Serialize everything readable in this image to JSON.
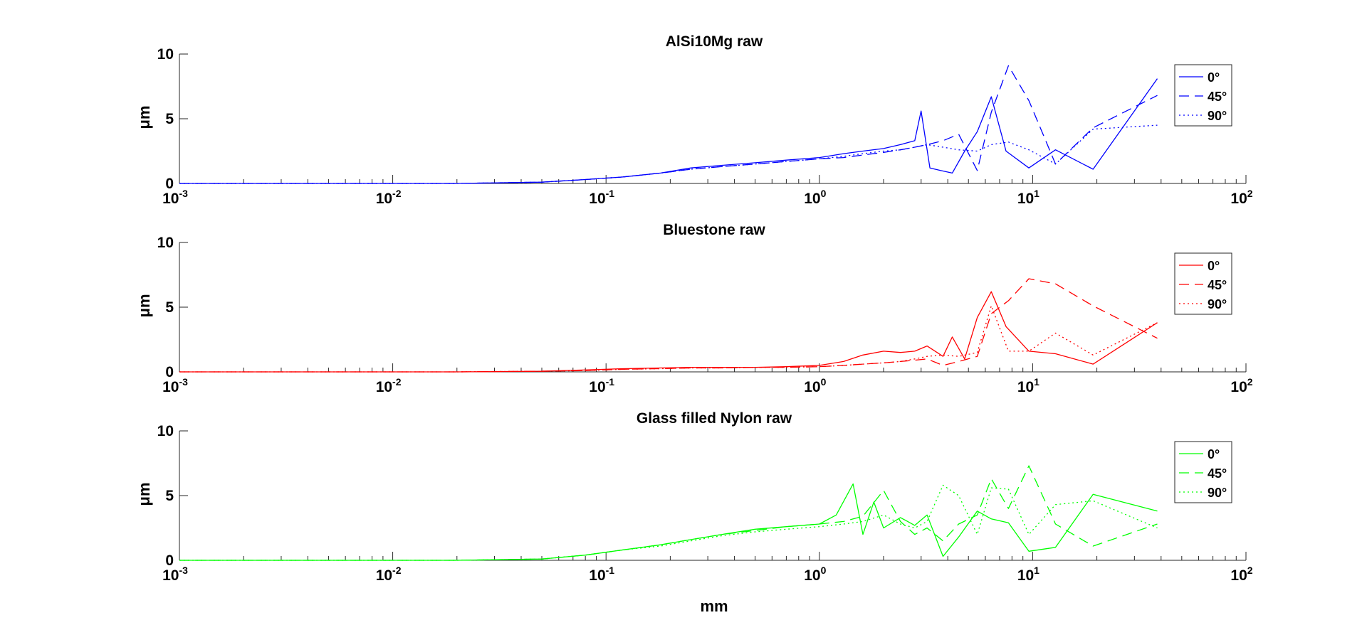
{
  "chart_data": [
    {
      "type": "line",
      "title": "AlSi10Mg raw",
      "color": "#0000ff",
      "xscale": "log",
      "xlim": [
        0.001,
        100
      ],
      "ylim": [
        0,
        10
      ],
      "yticks": [
        0,
        5,
        10
      ],
      "ylabel": "μm",
      "xlabel": "",
      "legend_position": "top-right",
      "grid": false,
      "series": [
        {
          "name": "0°",
          "style": "solid",
          "x": [
            0.001,
            0.02,
            0.05,
            0.08,
            0.12,
            0.18,
            0.25,
            0.35,
            0.5,
            0.7,
            1.0,
            1.3,
            1.6,
            2.0,
            2.4,
            2.8,
            3.0,
            3.3,
            3.7,
            4.2,
            4.8,
            5.5,
            6.4,
            7.5,
            9.6,
            12.8,
            19.2,
            38.4
          ],
          "y": [
            0,
            0,
            0.1,
            0.3,
            0.5,
            0.8,
            1.2,
            1.4,
            1.6,
            1.8,
            2.0,
            2.3,
            2.5,
            2.7,
            3.0,
            3.3,
            5.6,
            1.2,
            1.0,
            0.8,
            2.5,
            4.0,
            6.7,
            2.5,
            1.2,
            2.6,
            1.1,
            8.1
          ]
        },
        {
          "name": "45°",
          "style": "dashed",
          "x": [
            0.001,
            0.02,
            0.05,
            0.08,
            0.12,
            0.18,
            0.25,
            0.35,
            0.5,
            0.7,
            1.0,
            1.3,
            1.6,
            2.0,
            2.4,
            2.8,
            3.2,
            3.8,
            4.5,
            5.5,
            6.4,
            7.7,
            9.6,
            12.8,
            19.2,
            38.4
          ],
          "y": [
            0,
            0,
            0.1,
            0.3,
            0.5,
            0.8,
            1.1,
            1.3,
            1.5,
            1.7,
            1.9,
            2.0,
            2.2,
            2.4,
            2.6,
            2.8,
            3.0,
            3.3,
            3.8,
            1.0,
            5.5,
            9.1,
            6.4,
            1.5,
            4.3,
            6.8
          ]
        },
        {
          "name": "90°",
          "style": "dotted",
          "x": [
            0.001,
            0.02,
            0.05,
            0.08,
            0.12,
            0.18,
            0.25,
            0.35,
            0.5,
            0.7,
            1.0,
            1.3,
            1.6,
            2.0,
            2.4,
            2.8,
            3.2,
            3.8,
            4.5,
            5.5,
            6.4,
            7.7,
            9.6,
            12.8,
            19.2,
            38.4
          ],
          "y": [
            0,
            0,
            0.1,
            0.3,
            0.5,
            0.8,
            1.1,
            1.3,
            1.5,
            1.7,
            1.9,
            2.1,
            2.3,
            2.5,
            2.6,
            2.8,
            3.0,
            2.8,
            2.6,
            2.5,
            3.0,
            3.2,
            2.6,
            1.5,
            4.2,
            4.5
          ]
        }
      ]
    },
    {
      "type": "line",
      "title": "Bluestone raw",
      "color": "#ff0000",
      "xscale": "log",
      "xlim": [
        0.001,
        100
      ],
      "ylim": [
        0,
        10
      ],
      "yticks": [
        0,
        5,
        10
      ],
      "ylabel": "μm",
      "xlabel": "",
      "legend_position": "top-right",
      "grid": false,
      "series": [
        {
          "name": "0°",
          "style": "solid",
          "x": [
            0.001,
            0.02,
            0.05,
            0.08,
            0.12,
            0.18,
            0.25,
            0.35,
            0.5,
            0.7,
            1.0,
            1.3,
            1.6,
            2.0,
            2.4,
            2.8,
            3.2,
            3.8,
            4.2,
            4.8,
            5.5,
            6.4,
            7.5,
            9.6,
            12.8,
            19.2,
            38.4
          ],
          "y": [
            0,
            0,
            0.05,
            0.15,
            0.25,
            0.3,
            0.35,
            0.35,
            0.35,
            0.4,
            0.5,
            0.8,
            1.3,
            1.6,
            1.5,
            1.6,
            2.0,
            1.2,
            2.7,
            1.0,
            4.2,
            6.2,
            3.5,
            1.6,
            1.4,
            0.6,
            3.8
          ]
        },
        {
          "name": "45°",
          "style": "dashed",
          "x": [
            0.001,
            0.02,
            0.05,
            0.08,
            0.12,
            0.18,
            0.25,
            0.35,
            0.5,
            0.7,
            1.0,
            1.3,
            1.6,
            2.0,
            2.4,
            2.8,
            3.2,
            3.8,
            4.5,
            5.5,
            6.4,
            7.7,
            9.6,
            12.8,
            19.2,
            38.4
          ],
          "y": [
            0,
            0,
            0.05,
            0.1,
            0.2,
            0.25,
            0.3,
            0.3,
            0.35,
            0.35,
            0.4,
            0.5,
            0.6,
            0.7,
            0.8,
            0.9,
            1.0,
            0.5,
            0.8,
            1.2,
            4.5,
            5.5,
            7.2,
            6.8,
            5.1,
            2.6
          ]
        },
        {
          "name": "90°",
          "style": "dotted",
          "x": [
            0.001,
            0.02,
            0.05,
            0.08,
            0.12,
            0.18,
            0.25,
            0.35,
            0.5,
            0.7,
            1.0,
            1.3,
            1.6,
            2.0,
            2.4,
            2.8,
            3.2,
            3.8,
            4.5,
            5.5,
            6.4,
            7.7,
            9.6,
            12.8,
            19.2,
            38.4
          ],
          "y": [
            0,
            0,
            0.05,
            0.1,
            0.2,
            0.25,
            0.3,
            0.3,
            0.35,
            0.35,
            0.4,
            0.5,
            0.6,
            0.7,
            0.8,
            1.0,
            1.2,
            1.3,
            1.2,
            1.5,
            5.1,
            1.6,
            1.6,
            3.0,
            1.3,
            3.8
          ]
        }
      ]
    },
    {
      "type": "line",
      "title": "Glass filled Nylon raw",
      "color": "#00ff00",
      "xscale": "log",
      "xlim": [
        0.001,
        100
      ],
      "ylim": [
        0,
        10
      ],
      "yticks": [
        0,
        5,
        10
      ],
      "ylabel": "μm",
      "xlabel": "mm",
      "legend_position": "top-right",
      "grid": false,
      "series": [
        {
          "name": "0°",
          "style": "solid",
          "x": [
            0.001,
            0.02,
            0.05,
            0.08,
            0.12,
            0.18,
            0.25,
            0.35,
            0.5,
            0.7,
            1.0,
            1.2,
            1.44,
            1.6,
            1.8,
            2.0,
            2.4,
            2.8,
            3.2,
            3.8,
            4.5,
            5.5,
            6.4,
            7.7,
            9.6,
            12.8,
            19.2,
            38.4
          ],
          "y": [
            0,
            0,
            0.1,
            0.4,
            0.8,
            1.2,
            1.6,
            2.0,
            2.4,
            2.6,
            2.8,
            3.5,
            5.9,
            2.0,
            4.5,
            2.5,
            3.3,
            2.7,
            3.5,
            0.3,
            1.8,
            3.8,
            3.2,
            2.9,
            0.7,
            1.0,
            5.1,
            3.8
          ]
        },
        {
          "name": "45°",
          "style": "dashed",
          "x": [
            0.001,
            0.02,
            0.05,
            0.08,
            0.12,
            0.18,
            0.25,
            0.35,
            0.5,
            0.7,
            1.0,
            1.3,
            1.6,
            2.0,
            2.4,
            2.8,
            3.2,
            3.8,
            4.5,
            5.5,
            6.4,
            7.7,
            9.6,
            12.8,
            19.2,
            38.4
          ],
          "y": [
            0,
            0,
            0.1,
            0.4,
            0.8,
            1.2,
            1.6,
            2.0,
            2.3,
            2.6,
            2.8,
            3.0,
            3.4,
            5.4,
            3.0,
            2.0,
            2.5,
            1.5,
            2.8,
            3.5,
            6.3,
            4.0,
            7.3,
            2.8,
            1.1,
            2.8
          ]
        },
        {
          "name": "90°",
          "style": "dotted",
          "x": [
            0.001,
            0.02,
            0.05,
            0.08,
            0.12,
            0.18,
            0.25,
            0.35,
            0.5,
            0.7,
            1.0,
            1.3,
            1.6,
            2.0,
            2.4,
            2.8,
            3.2,
            3.8,
            4.5,
            5.5,
            6.4,
            7.7,
            9.6,
            12.8,
            19.2,
            38.4
          ],
          "y": [
            0,
            0,
            0.1,
            0.4,
            0.8,
            1.1,
            1.5,
            1.9,
            2.2,
            2.4,
            2.6,
            2.8,
            3.0,
            3.5,
            2.8,
            2.5,
            3.0,
            5.8,
            5.0,
            2.0,
            5.6,
            5.5,
            2.0,
            4.3,
            4.6,
            2.5
          ]
        }
      ]
    }
  ]
}
